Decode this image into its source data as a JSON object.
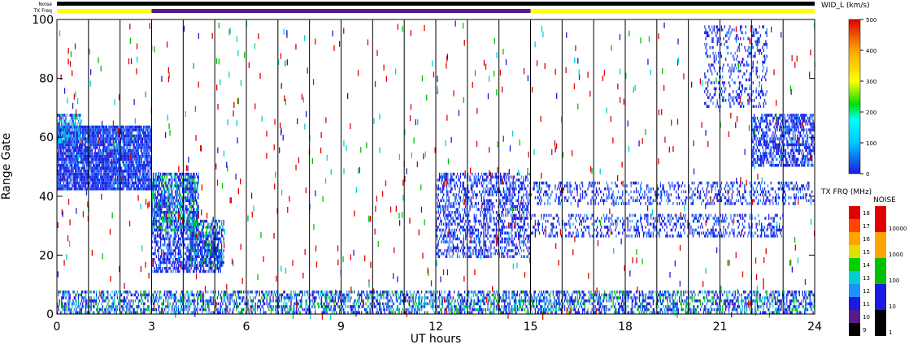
{
  "chart_data": {
    "type": "heatmap",
    "xlabel": "UT hours",
    "ylabel": "Range Gate",
    "xlim": [
      0,
      24
    ],
    "ylim": [
      0,
      100
    ],
    "x_ticks": [
      0,
      3,
      6,
      9,
      12,
      15,
      18,
      21,
      24
    ],
    "y_ticks": [
      0,
      20,
      40,
      60,
      80,
      100
    ],
    "hour_lines": [
      1,
      2,
      3,
      4,
      5,
      6,
      7,
      8,
      9,
      10,
      11,
      12,
      13,
      14,
      15,
      16,
      17,
      18,
      19,
      20,
      21,
      22,
      23
    ],
    "top_bars": {
      "noise_label": "Noise",
      "txfreq_label": "TX Freq",
      "noise_color": "#000000",
      "txfreq_segments": [
        {
          "start": 0,
          "end": 3,
          "color": "#ffff00"
        },
        {
          "start": 3,
          "end": 15,
          "color": "#5a1a8a"
        },
        {
          "start": 15,
          "end": 24,
          "color": "#ffff00"
        }
      ]
    },
    "scatter_regions": [
      {
        "x": [
          0,
          3
        ],
        "y": [
          42,
          64
        ],
        "density": 0.9,
        "palette": "blue"
      },
      {
        "x": [
          0,
          0.8
        ],
        "y": [
          58,
          68
        ],
        "density": 0.6,
        "palette": "cyan"
      },
      {
        "x": [
          3,
          4.5
        ],
        "y": [
          28,
          48
        ],
        "density": 0.75,
        "palette": "mixed"
      },
      {
        "x": [
          3,
          5.2
        ],
        "y": [
          14,
          28
        ],
        "density": 0.6,
        "palette": "blue"
      },
      {
        "x": [
          4.2,
          5.3
        ],
        "y": [
          16,
          32
        ],
        "density": 0.55,
        "palette": "mixed"
      },
      {
        "x": [
          12,
          15
        ],
        "y": [
          19,
          48
        ],
        "density": 0.45,
        "palette": "blue"
      },
      {
        "x": [
          15,
          24
        ],
        "y": [
          37,
          45
        ],
        "density": 0.3,
        "palette": "blue"
      },
      {
        "x": [
          15,
          23
        ],
        "y": [
          26,
          34
        ],
        "density": 0.3,
        "palette": "blue"
      },
      {
        "x": [
          20.5,
          22.5
        ],
        "y": [
          70,
          98
        ],
        "density": 0.25,
        "palette": "blue"
      },
      {
        "x": [
          22,
          24
        ],
        "y": [
          50,
          68
        ],
        "density": 0.6,
        "palette": "blue"
      },
      {
        "x": [
          0,
          24
        ],
        "y": [
          0,
          8
        ],
        "density": 0.5,
        "palette": "mixed"
      }
    ],
    "velocity_colorbar": {
      "title": "WID_L (km/s)",
      "ticks": [
        0,
        100,
        200,
        300,
        400,
        500
      ],
      "range": [
        0,
        500
      ]
    },
    "txfreq_colorbar": {
      "title": "TX FRQ (MHz)",
      "ticks": [
        9,
        10,
        11,
        12,
        13,
        14,
        15,
        16,
        17,
        18
      ],
      "colors": [
        "#000000",
        "#5a1a8a",
        "#1a1ae0",
        "#1e90ff",
        "#00d0d0",
        "#00d000",
        "#e0e000",
        "#ffa500",
        "#ff4500",
        "#e00000"
      ]
    },
    "noise_colorbar": {
      "title": "NOISE",
      "ticks": [
        "1",
        "10",
        "100",
        "1000",
        "10000"
      ],
      "colors": [
        "#000000",
        "#1a1ae0",
        "#00c000",
        "#ffa500",
        "#e00000"
      ]
    }
  }
}
